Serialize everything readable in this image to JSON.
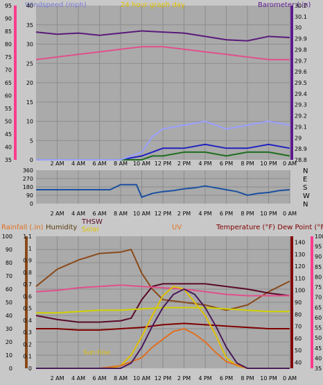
{
  "chart_data": [
    {
      "type": "line",
      "panel": "wind-barometer",
      "title": "24 hour graph day",
      "x_ticks": [
        "2 AM",
        "4 AM",
        "6 AM",
        "8 AM",
        "10 AM",
        "12 PM",
        "2 PM",
        "4 PM",
        "6 PM",
        "8 PM",
        "10 PM",
        "0 AM"
      ],
      "left_axis": {
        "label": "Windspeed (mph)",
        "label_color": "#7b7bd6",
        "ticks": [
          "0",
          "5",
          "10",
          "15",
          "20",
          "25",
          "30",
          "35",
          "40"
        ],
        "ylim": [
          0,
          40
        ]
      },
      "outer_left_axis": {
        "label_color": "#ff3b8e",
        "ticks": [
          "35",
          "40",
          "45",
          "50",
          "55",
          "60",
          "65",
          "70",
          "75",
          "80",
          "85",
          "90",
          "95"
        ],
        "ylim": [
          35,
          95
        ]
      },
      "right_axis": {
        "label": "Barometer (.in)",
        "label_color": "#5b1a8e",
        "ticks": [
          "28.8",
          "28.9",
          "29",
          "29.1",
          "29.2",
          "29.3",
          "29.4",
          "29.5",
          "29.6",
          "29.7",
          "29.8",
          "29.9",
          "30",
          "30.1",
          "30.2"
        ],
        "ylim": [
          28.8,
          30.2
        ]
      },
      "series": [
        {
          "color": "#5a1a7a",
          "axis": "right",
          "x": [
            0,
            2,
            4,
            6,
            8,
            10,
            12,
            14,
            16,
            18,
            20,
            22,
            24
          ],
          "values": [
            29.96,
            29.94,
            29.95,
            29.93,
            29.95,
            29.97,
            29.96,
            29.95,
            29.92,
            29.89,
            29.88,
            29.92,
            29.91
          ]
        },
        {
          "color": "#e0508c",
          "axis": "outer_left",
          "x": [
            0,
            2,
            4,
            6,
            8,
            10,
            12,
            14,
            16,
            18,
            20,
            22,
            24
          ],
          "values": [
            74,
            75,
            76,
            77,
            78,
            79,
            79,
            78,
            77,
            76,
            75,
            74,
            74
          ]
        },
        {
          "color": "#2020c0",
          "axis": "left",
          "x": [
            0,
            2,
            4,
            6,
            8,
            10,
            11,
            12,
            14,
            16,
            18,
            20,
            22,
            24
          ],
          "values": [
            0,
            0,
            0,
            0,
            0,
            1,
            2,
            3,
            3,
            4,
            3,
            3,
            4,
            3
          ]
        },
        {
          "color": "#1e6e1e",
          "axis": "left",
          "x": [
            0,
            2,
            4,
            6,
            8,
            10,
            11,
            12,
            14,
            16,
            18,
            20,
            22,
            24
          ],
          "values": [
            0,
            0,
            0,
            0,
            0,
            0,
            1,
            1,
            2,
            2,
            1,
            2,
            2,
            1
          ]
        },
        {
          "color": "#9aa0ff",
          "axis": "left",
          "x": [
            0,
            2,
            4,
            6,
            8,
            10,
            11,
            12,
            14,
            16,
            18,
            20,
            22,
            24
          ],
          "values": [
            0,
            0,
            0,
            0,
            0,
            2,
            6,
            8,
            9,
            10,
            8,
            9,
            10,
            9
          ]
        }
      ]
    },
    {
      "type": "line",
      "panel": "wind-direction",
      "x_ticks": [
        "2 AM",
        "4 AM",
        "6 AM",
        "8 AM",
        "10 AM",
        "12 PM",
        "2 PM",
        "4 PM",
        "6 PM",
        "8 PM",
        "10 PM",
        "0 AM"
      ],
      "left_axis": {
        "ticks": [
          "0",
          "90",
          "180",
          "270",
          "360"
        ],
        "ylim": [
          0,
          360
        ]
      },
      "right_labels": [
        "N",
        "W",
        "S",
        "E",
        "N"
      ],
      "series": [
        {
          "color": "#1a4fa0",
          "x": [
            0,
            1,
            2,
            3,
            4,
            5,
            6,
            7,
            8,
            9,
            9.5,
            10,
            11,
            12,
            13,
            14,
            15,
            16,
            17,
            18,
            19,
            20,
            21,
            22,
            23,
            24
          ],
          "values": [
            150,
            150,
            150,
            150,
            150,
            150,
            150,
            150,
            205,
            205,
            205,
            70,
            110,
            130,
            140,
            160,
            170,
            190,
            170,
            150,
            130,
            90,
            110,
            120,
            140,
            150
          ]
        }
      ]
    },
    {
      "type": "line",
      "panel": "rain-temp-solar",
      "x_ticks": [
        "2 AM",
        "4 AM",
        "6 AM",
        "8 AM",
        "10 AM",
        "12 PM",
        "2 PM",
        "4 PM",
        "6 PM",
        "8 PM",
        "10 PM",
        "0 AM"
      ],
      "labels": {
        "rainfall": "Rainfall (.in)",
        "humidity": "Humidity",
        "thsw": "THSW",
        "solar": "Solar",
        "uv": "UV",
        "temperature": "Temperature (°F) Dew Point (°F)",
        "sunrise": "Sun Rise"
      },
      "label_colors": {
        "rainfall": "#e07020",
        "humidity": "#5a3a0a",
        "thsw": "#5a0a2a",
        "solar": "#e0c000",
        "uv": "#e07020",
        "temperature": "#800000",
        "dewpoint": "#ff3b8e"
      },
      "rain_axis": {
        "ticks": [
          "0",
          "10",
          "20",
          "30",
          "40",
          "50",
          "60",
          "70",
          "80",
          "90",
          "100"
        ],
        "ylim": [
          0,
          100
        ]
      },
      "uv_axis": {
        "ticks": [
          "0",
          "0.1",
          "0.2",
          "0.3",
          "0.4",
          "0.5",
          "0.6",
          "0.7",
          "0.8",
          "0.9",
          "1",
          "1.1"
        ],
        "ylim": [
          0,
          1.1
        ]
      },
      "temp_axis": {
        "ticks": [
          "40",
          "50",
          "60",
          "70",
          "80",
          "90",
          "100",
          "110",
          "120",
          "130",
          "140"
        ],
        "ylim": [
          35,
          145
        ]
      },
      "dew_axis": {
        "ticks": [
          "35",
          "40",
          "45",
          "50",
          "55",
          "60",
          "65",
          "70",
          "75",
          "80",
          "85",
          "90",
          "95",
          "100"
        ],
        "ylim": [
          35,
          100
        ]
      },
      "series": [
        {
          "color": "#8a4a1a",
          "axis": "rain",
          "x": [
            0,
            2,
            4,
            6,
            8,
            9,
            10,
            11,
            12,
            14,
            16,
            18,
            20,
            22,
            24
          ],
          "values": [
            62,
            75,
            82,
            87,
            88,
            90,
            72,
            60,
            52,
            50,
            48,
            44,
            48,
            58,
            66
          ]
        },
        {
          "color": "#5a0a2a",
          "axis": "rain",
          "x": [
            0,
            2,
            4,
            6,
            8,
            9,
            10,
            11,
            12,
            14,
            16,
            18,
            20,
            22,
            24
          ],
          "values": [
            40,
            37,
            35,
            35,
            36,
            38,
            52,
            62,
            64,
            64,
            64,
            62,
            60,
            57,
            55
          ]
        },
        {
          "color": "#e0508c",
          "axis": "rain",
          "x": [
            0,
            2,
            4,
            6,
            8,
            10,
            12,
            14,
            16,
            18,
            20,
            22,
            24
          ],
          "values": [
            58,
            59,
            61,
            62,
            63,
            62,
            61,
            60,
            58,
            56,
            55,
            55,
            55
          ]
        },
        {
          "color": "#800000",
          "axis": "rain",
          "x": [
            0,
            2,
            4,
            6,
            8,
            10,
            12,
            14,
            16,
            18,
            20,
            22,
            24
          ],
          "values": [
            30,
            30,
            29,
            29,
            30,
            31,
            33,
            34,
            33,
            32,
            31,
            30,
            30
          ]
        },
        {
          "color": "#e0c000",
          "axis": "rain",
          "x": [
            0,
            2,
            4,
            6,
            7,
            8,
            9,
            10,
            11,
            12,
            13,
            14,
            15,
            16,
            17,
            18,
            19,
            20,
            21,
            22,
            23,
            24
          ],
          "values": [
            0,
            0,
            0,
            0,
            0,
            2,
            10,
            24,
            40,
            55,
            62,
            60,
            50,
            40,
            25,
            8,
            2,
            0,
            0,
            0,
            0,
            0
          ]
        },
        {
          "color": "#e07020",
          "axis": "rain",
          "x": [
            0,
            2,
            4,
            6,
            8,
            10,
            11,
            12,
            13,
            14,
            15,
            16,
            17,
            18,
            20,
            22,
            24
          ],
          "values": [
            0,
            0,
            0,
            0,
            2,
            8,
            16,
            22,
            28,
            30,
            26,
            20,
            12,
            5,
            0,
            0,
            0
          ]
        },
        {
          "color": "#d0d000",
          "axis": "rain",
          "x": [
            0,
            2,
            4,
            6,
            8,
            10,
            12,
            14,
            16,
            18,
            20,
            22,
            24
          ],
          "values": [
            42,
            42,
            43,
            44,
            44,
            45,
            46,
            46,
            46,
            45,
            44,
            43,
            43
          ]
        },
        {
          "color": "#4a1a5a",
          "axis": "rain",
          "x": [
            0,
            4,
            6,
            8,
            9,
            10,
            11,
            12,
            13,
            14,
            15,
            16,
            17,
            18,
            19,
            20,
            24
          ],
          "values": [
            0,
            0,
            0,
            0,
            4,
            16,
            32,
            46,
            56,
            60,
            56,
            46,
            32,
            16,
            4,
            0,
            0
          ]
        }
      ]
    }
  ]
}
